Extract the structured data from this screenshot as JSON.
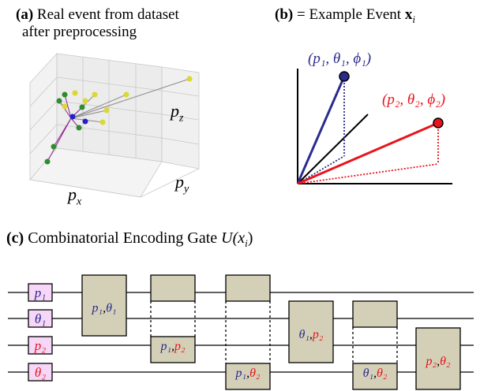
{
  "panel_a": {
    "tag": "(a)",
    "title_line1": "Real event from dataset",
    "title_line2": "after preprocessing",
    "axis_x": "p",
    "axis_x_sub": "x",
    "axis_y": "p",
    "axis_y_sub": "y",
    "axis_z": "p",
    "axis_z_sub": "z"
  },
  "panel_b": {
    "tag": "(b)",
    "title": "= Example Event",
    "title_symbol": "x",
    "title_symbol_sub": "i",
    "vec1_label": "(p₁, θ₁, ϕ₁)",
    "vec2_label": "(p₂, θ₂, ϕ₂)",
    "colors": {
      "vec1": "#2b2b8f",
      "vec2": "#e8141c",
      "axis": "#000000"
    }
  },
  "panel_c": {
    "tag": "(c)",
    "title": "Combinatorial Encoding Gate",
    "title_symbol": "U(x",
    "title_symbol_sub": "i",
    "title_close": ")",
    "wire_labels": [
      "p₁",
      "θ₁",
      "p₂",
      "θ₂"
    ],
    "wire_label_colors": [
      "#2b2b8f",
      "#2b2b8f",
      "#e8141c",
      "#e8141c"
    ],
    "gates": [
      {
        "a": "p₁",
        "b": "θ₁",
        "ca": "#2b2b8f",
        "cb": "#2b2b8f"
      },
      {
        "a": "p₁",
        "b": "p₂",
        "ca": "#2b2b8f",
        "cb": "#e8141c"
      },
      {
        "a": "p₁",
        "b": "θ₂",
        "ca": "#2b2b8f",
        "cb": "#e8141c"
      },
      {
        "a": "θ₁",
        "b": "p₂",
        "ca": "#2b2b8f",
        "cb": "#e8141c"
      },
      {
        "a": "θ₁",
        "b": "θ₂",
        "ca": "#2b2b8f",
        "cb": "#e8141c"
      },
      {
        "a": "p₂",
        "b": "θ₂",
        "ca": "#e8141c",
        "cb": "#e8141c"
      }
    ],
    "colors": {
      "label_box": "#f7d7f7",
      "gate_box": "#d4d0b8"
    }
  }
}
